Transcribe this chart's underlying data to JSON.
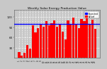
{
  "title": "Weekly Solar Energy Production Value",
  "bar_color": "#FF0000",
  "line_color": "#0000FF",
  "line_value": 100,
  "legend_labels": [
    "Expected",
    "Actual"
  ],
  "legend_colors": [
    "#0000FF",
    "#FF0000"
  ],
  "background_color": "#C8C8C8",
  "plot_bg_color": "#CC0000",
  "grid_color": "#FFFFFF",
  "values": [
    18,
    8,
    15,
    38,
    28,
    95,
    75,
    88,
    100,
    92,
    108,
    95,
    102,
    110,
    92,
    100,
    78,
    55,
    110,
    100,
    118,
    98,
    88,
    115,
    108,
    122,
    100,
    112,
    85
  ],
  "ylim": [
    0,
    140
  ],
  "ytick_values": [
    30,
    60,
    90,
    120
  ],
  "ytick_labels": [
    "30",
    "60",
    "90",
    "120"
  ],
  "num_bars": 29
}
